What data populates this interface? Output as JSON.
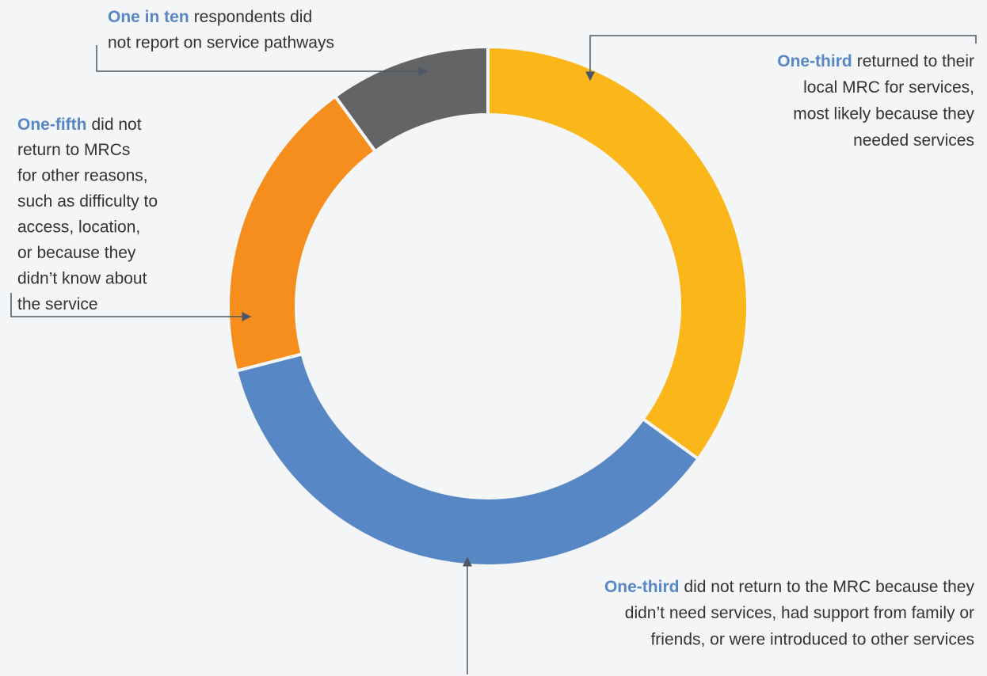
{
  "chart_data": {
    "type": "donut",
    "values": [
      35,
      36,
      19,
      10
    ],
    "colors": [
      "#fbb719",
      "#5787c5",
      "#f68e1e",
      "#636466"
    ],
    "highlight_color": "#5787c5",
    "annotations": [
      {
        "highlight": "One-third",
        "first": "returned to their",
        "lines": [
          "local MRC for services,",
          "most likely because they",
          "needed services"
        ]
      },
      {
        "highlight": "One-third",
        "first": "did not return to the MRC because they",
        "lines": [
          "didn’t need services, had support from family or",
          "friends, or were introduced to other services"
        ]
      },
      {
        "highlight": "One-fifth",
        "first": "did not",
        "lines": [
          "return to MRCs",
          "for other reasons,",
          "such as difficulty to",
          "access, location,",
          "or because they",
          "didn’t know about",
          "the service"
        ]
      },
      {
        "highlight": "One in ten",
        "first": "respondents did",
        "lines": [
          "not report on service pathways"
        ]
      }
    ]
  }
}
